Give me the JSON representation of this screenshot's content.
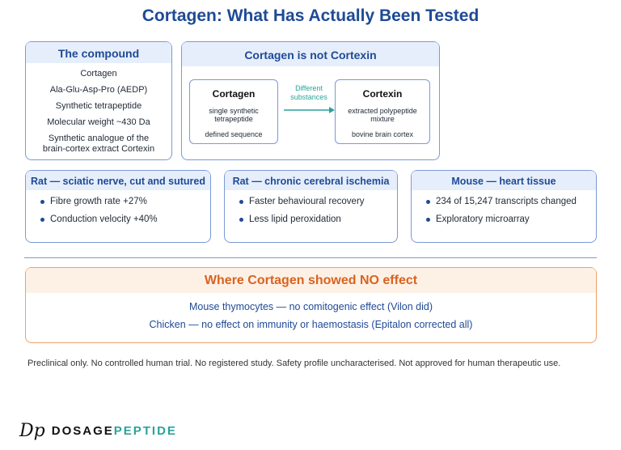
{
  "title": "Cortagen: What Has Actually Been Tested",
  "compound": {
    "heading": "The compound",
    "lines": [
      "Cortagen",
      "Ala-Glu-Asp-Pro (AEDP)",
      "Synthetic tetrapeptide",
      "Molecular weight ~430 Da",
      "Synthetic analogue of the brain-cortex extract Cortexin"
    ]
  },
  "comparison": {
    "heading": "Cortagen is not Cortexin",
    "left": {
      "name": "Cortagen",
      "line1": "single synthetic tetrapeptide",
      "line2": "defined sequence"
    },
    "arrow_label_1": "Different",
    "arrow_label_2": "substances",
    "right": {
      "name": "Cortexin",
      "line1": "extracted polypeptide mixture",
      "line2": "bovine brain cortex"
    }
  },
  "studies": [
    {
      "heading": "Rat — sciatic nerve, cut and sutured",
      "bullets": [
        "Fibre growth rate +27%",
        "Conduction velocity +40%"
      ]
    },
    {
      "heading": "Rat — chronic cerebral ischemia",
      "bullets": [
        "Faster behavioural recovery",
        "Less lipid peroxidation"
      ]
    },
    {
      "heading": "Mouse — heart tissue",
      "bullets": [
        "234 of 15,247 transcripts changed",
        "Exploratory microarray"
      ]
    }
  ],
  "no_effect": {
    "heading": "Where Cortagen showed NO effect",
    "lines": [
      "Mouse thymocytes — no comitogenic effect (Vilon did)",
      "Chicken — no effect on immunity or haemostasis (Epitalon corrected all)"
    ]
  },
  "footnote": "Preclinical only. No controlled human trial. No registered study. Safety profile uncharacterised. Not approved for human therapeutic use.",
  "logo": {
    "mark": "Dp",
    "word1": "DOSAGE",
    "word2": "PEPTIDE"
  },
  "colors": {
    "primary": "#1e4a96",
    "accent": "#d9621f",
    "arrow": "#2aa39a"
  }
}
